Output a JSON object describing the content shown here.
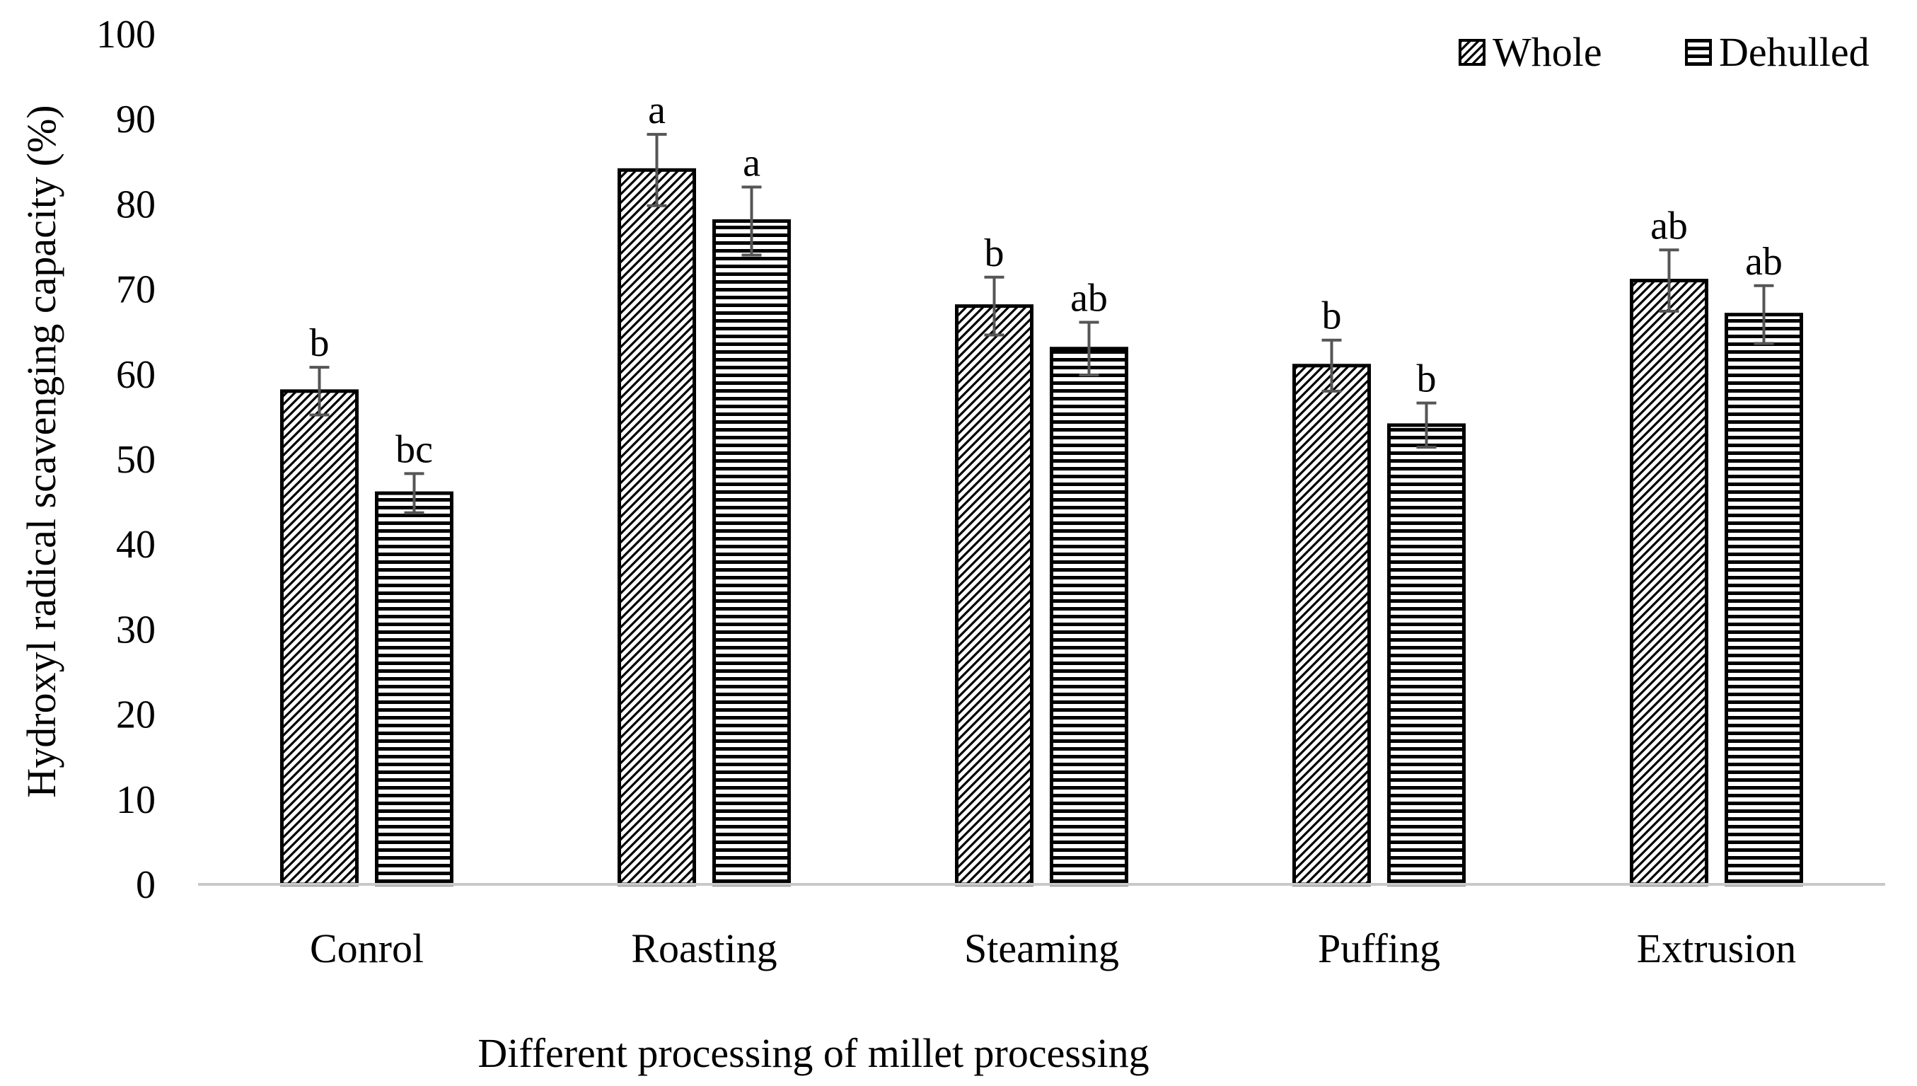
{
  "chart_data": {
    "type": "bar",
    "title": "",
    "xlabel": "Different processing of millet processing",
    "ylabel": "Hydroxyl radical scavenging capacity (%)",
    "ylim": [
      0,
      100
    ],
    "yticks": [
      0,
      10,
      20,
      30,
      40,
      50,
      60,
      70,
      80,
      90,
      100
    ],
    "ytick_labels": [
      "0",
      "10",
      "20",
      "30",
      "40",
      "50",
      "60",
      "70",
      "80",
      "90",
      "100"
    ],
    "categories": [
      "Conrol",
      "Roasting",
      "Steaming",
      "Puffing",
      "Extrusion"
    ],
    "legend_position": "top-right",
    "series": [
      {
        "name": "Whole",
        "pattern": "diagonal",
        "values": [
          58,
          84,
          68,
          61,
          71
        ],
        "errors": [
          2.8,
          4.2,
          3.4,
          3.0,
          3.6
        ],
        "labels": [
          "b",
          "a",
          "b",
          "b",
          "ab"
        ]
      },
      {
        "name": "Dehulled",
        "pattern": "horizontal",
        "values": [
          46,
          78,
          63,
          54,
          67
        ],
        "errors": [
          2.3,
          4.0,
          3.1,
          2.6,
          3.4
        ],
        "labels": [
          "bc",
          "a",
          "ab",
          "b",
          "ab"
        ]
      }
    ],
    "grid": false
  }
}
